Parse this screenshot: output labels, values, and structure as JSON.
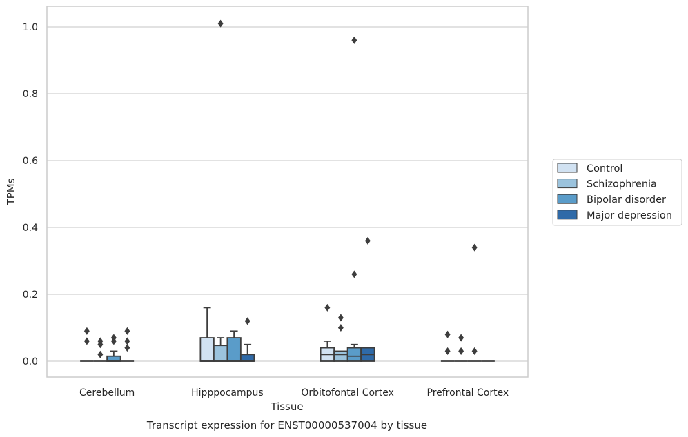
{
  "chart_data": {
    "type": "box",
    "title": "Transcript expression for ENST00000537004 by tissue",
    "xlabel": "Tissue",
    "ylabel": "TPMs",
    "ylim": [
      -0.05,
      1.06
    ],
    "yticks": [
      0.0,
      0.2,
      0.4,
      0.6,
      0.8,
      1.0
    ],
    "ytick_labels": [
      "0.0",
      "0.2",
      "0.4",
      "0.6",
      "0.8",
      "1.0"
    ],
    "grid": "horizontal",
    "legend_position": "right",
    "categories": [
      "Cerebellum",
      "Hipppocampus",
      "Orbitofontal Cortex",
      "Prefrontal Cortex"
    ],
    "series": [
      {
        "name": "Control",
        "color": "#d1e2f2",
        "boxes": [
          {
            "q1": 0.0,
            "median": 0.0,
            "q3": 0.0,
            "whisker_low": 0.0,
            "whisker_high": 0.0,
            "outliers": [
              0.09,
              0.06
            ]
          },
          {
            "q1": 0.0,
            "median": 0.0,
            "q3": 0.07,
            "whisker_low": 0.0,
            "whisker_high": 0.16,
            "outliers": []
          },
          {
            "q1": 0.0,
            "median": 0.02,
            "q3": 0.04,
            "whisker_low": 0.0,
            "whisker_high": 0.06,
            "outliers": [
              0.16
            ]
          },
          {
            "q1": 0.0,
            "median": 0.0,
            "q3": 0.0,
            "whisker_low": 0.0,
            "whisker_high": 0.0,
            "outliers": [
              0.08,
              0.03
            ]
          }
        ]
      },
      {
        "name": "Schizophrenia",
        "color": "#9bc3dd",
        "boxes": [
          {
            "q1": 0.0,
            "median": 0.0,
            "q3": 0.0,
            "whisker_low": 0.0,
            "whisker_high": 0.0,
            "outliers": [
              0.06,
              0.05,
              0.02
            ]
          },
          {
            "q1": 0.0,
            "median": 0.0,
            "q3": 0.047,
            "whisker_low": 0.0,
            "whisker_high": 0.07,
            "outliers": [
              1.01
            ]
          },
          {
            "q1": 0.0,
            "median": 0.02,
            "q3": 0.03,
            "whisker_low": 0.0,
            "whisker_high": 0.03,
            "outliers": [
              0.13,
              0.1
            ]
          },
          {
            "q1": 0.0,
            "median": 0.0,
            "q3": 0.0,
            "whisker_low": 0.0,
            "whisker_high": 0.0,
            "outliers": [
              0.07,
              0.03
            ]
          }
        ]
      },
      {
        "name": "Bipolar disorder",
        "color": "#5a9cc9",
        "boxes": [
          {
            "q1": 0.0,
            "median": 0.0,
            "q3": 0.015,
            "whisker_low": 0.0,
            "whisker_high": 0.03,
            "outliers": [
              0.07,
              0.06
            ]
          },
          {
            "q1": 0.0,
            "median": 0.0,
            "q3": 0.07,
            "whisker_low": 0.0,
            "whisker_high": 0.09,
            "outliers": []
          },
          {
            "q1": 0.0,
            "median": 0.015,
            "q3": 0.04,
            "whisker_low": 0.0,
            "whisker_high": 0.05,
            "outliers": [
              0.96,
              0.26
            ]
          },
          {
            "q1": 0.0,
            "median": 0.0,
            "q3": 0.0,
            "whisker_low": 0.0,
            "whisker_high": 0.0,
            "outliers": [
              0.34,
              0.03
            ]
          }
        ]
      },
      {
        "name": "Major depression",
        "color": "#2f6aa8",
        "boxes": [
          {
            "q1": 0.0,
            "median": 0.0,
            "q3": 0.0,
            "whisker_low": 0.0,
            "whisker_high": 0.0,
            "outliers": [
              0.09,
              0.06,
              0.04
            ]
          },
          {
            "q1": 0.0,
            "median": 0.0,
            "q3": 0.02,
            "whisker_low": 0.0,
            "whisker_high": 0.05,
            "outliers": [
              0.12
            ]
          },
          {
            "q1": 0.0,
            "median": 0.02,
            "q3": 0.04,
            "whisker_low": 0.0,
            "whisker_high": 0.04,
            "outliers": [
              0.36
            ]
          },
          {
            "q1": 0.0,
            "median": 0.0,
            "q3": 0.0,
            "whisker_low": 0.0,
            "whisker_high": 0.0,
            "outliers": []
          }
        ]
      }
    ]
  }
}
